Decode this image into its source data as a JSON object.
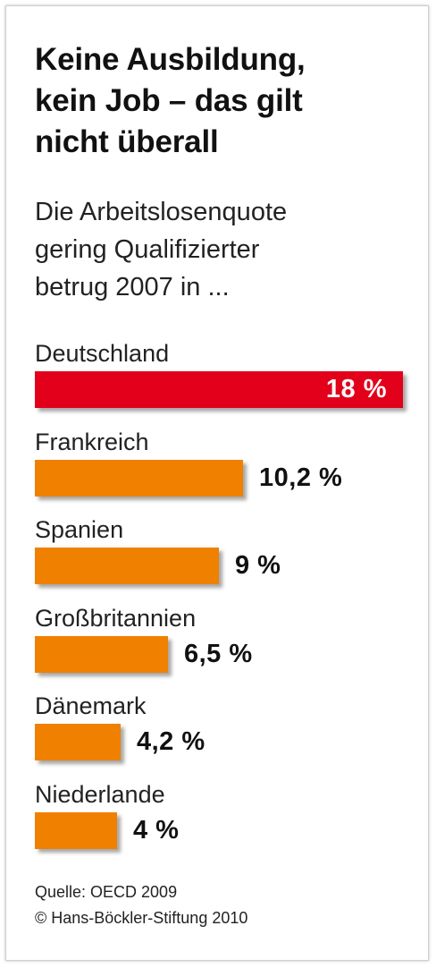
{
  "title_lines": [
    "Keine Ausbildung,",
    "kein Job – das gilt",
    "nicht überall"
  ],
  "subtitle_lines": [
    "Die Arbeitslosenquote",
    "gering Qualifizierter",
    "betrug 2007 in ..."
  ],
  "chart_data": {
    "type": "bar",
    "orientation": "horizontal",
    "categories": [
      "Deutschland",
      "Frankreich",
      "Spanien",
      "Großbritannien",
      "Dänemark",
      "Niederlande"
    ],
    "values": [
      18,
      10.2,
      9,
      6.5,
      4.2,
      4
    ],
    "value_labels": [
      "18 %",
      "10,2 %",
      "9 %",
      "6,5 %",
      "4,2 %",
      "4 %"
    ],
    "unit": "%",
    "highlight_color": "#e2001a",
    "bar_color": "#f08000",
    "highlight_index": 0
  },
  "source_lines": [
    "Quelle: OECD 2009",
    "© Hans-Böckler-Stiftung 2010"
  ]
}
